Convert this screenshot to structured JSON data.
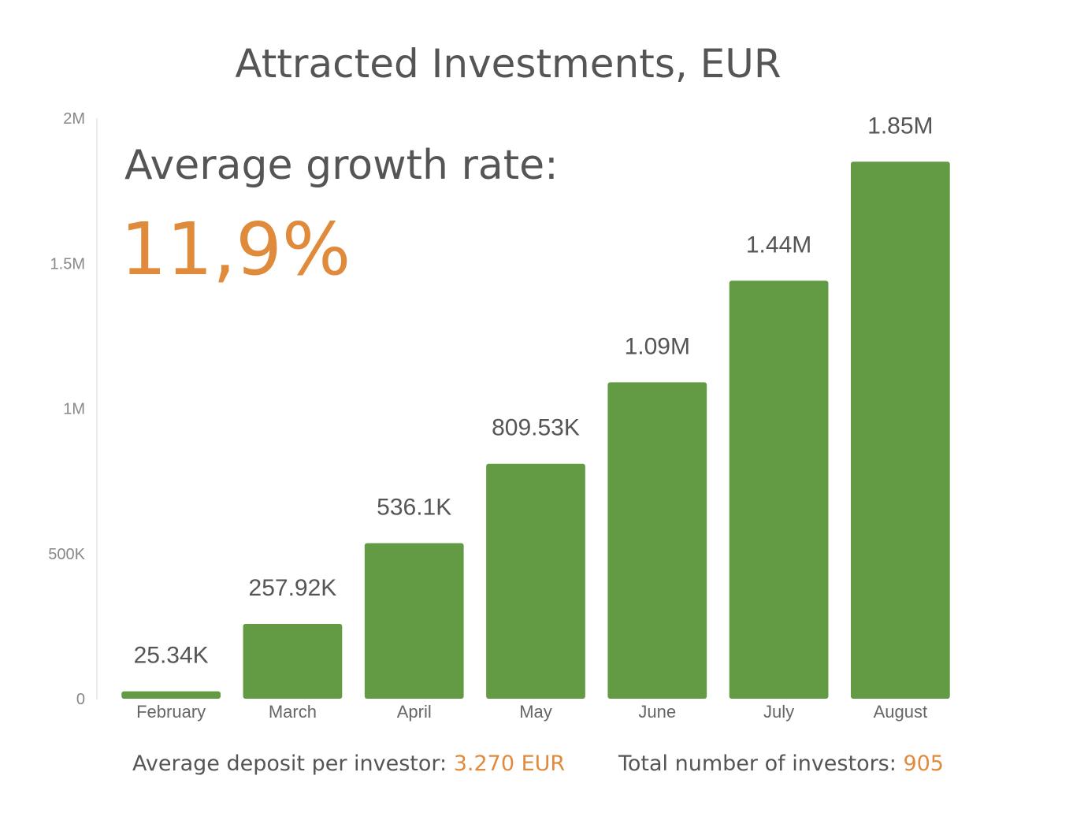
{
  "chart_data": {
    "type": "bar",
    "title": "Attracted Investments, EUR",
    "categories": [
      "February",
      "March",
      "April",
      "May",
      "June",
      "July",
      "August"
    ],
    "values": [
      25340,
      257920,
      536100,
      809530,
      1090000,
      1440000,
      1850000
    ],
    "data_labels": [
      "25.34K",
      "257.92K",
      "536.1K",
      "809.53K",
      "1.09M",
      "1.44M",
      "1.85M"
    ],
    "ylim": [
      0,
      2000000
    ],
    "yticks": [
      {
        "value": 0,
        "label": "0"
      },
      {
        "value": 500000,
        "label": "500K"
      },
      {
        "value": 1000000,
        "label": "1M"
      },
      {
        "value": 1500000,
        "label": "1.5M"
      },
      {
        "value": 2000000,
        "label": "2M"
      }
    ],
    "grid": false,
    "colors": {
      "bar": "#629b44",
      "accent": "#e08a3c"
    }
  },
  "annotation": {
    "growth_label": "Average growth rate:",
    "growth_value": "11,9%"
  },
  "footer": {
    "deposit_label": "Average deposit per investor: ",
    "deposit_value": "3.270 EUR",
    "investors_label": "Total number of investors: ",
    "investors_value": "905"
  }
}
